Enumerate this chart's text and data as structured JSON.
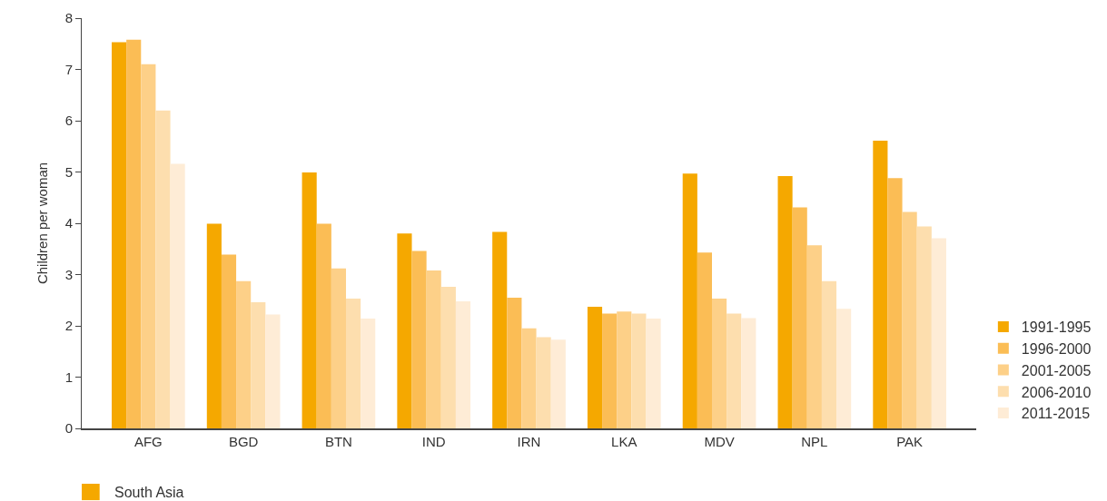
{
  "chart_data": {
    "type": "bar",
    "ylabel": "Children per woman",
    "categories": [
      "AFG",
      "BGD",
      "BTN",
      "IND",
      "IRN",
      "LKA",
      "MDV",
      "NPL",
      "PAK"
    ],
    "series": [
      {
        "name": "1991-1995",
        "color": "#f5a800",
        "values": [
          7.53,
          3.99,
          4.99,
          3.8,
          3.83,
          2.37,
          4.97,
          4.92,
          5.61
        ]
      },
      {
        "name": "1996-2000",
        "color": "#fbbd55",
        "values": [
          7.58,
          3.39,
          3.99,
          3.46,
          2.55,
          2.24,
          3.43,
          4.31,
          4.88
        ]
      },
      {
        "name": "2001-2005",
        "color": "#fdd088",
        "values": [
          7.1,
          2.87,
          3.12,
          3.08,
          1.95,
          2.28,
          2.53,
          3.57,
          4.22
        ]
      },
      {
        "name": "2006-2010",
        "color": "#fddeae",
        "values": [
          6.2,
          2.46,
          2.53,
          2.76,
          1.78,
          2.24,
          2.24,
          2.87,
          3.94
        ]
      },
      {
        "name": "2011-2015",
        "color": "#feecd6",
        "values": [
          5.16,
          2.22,
          2.14,
          2.48,
          1.73,
          2.14,
          2.15,
          2.33,
          3.71
        ]
      }
    ],
    "ylim": [
      0,
      8
    ],
    "yticks": [
      0,
      1,
      2,
      3,
      4,
      5,
      6,
      7,
      8
    ],
    "legend": "bottom right",
    "annotations": [
      "South Asia"
    ]
  }
}
